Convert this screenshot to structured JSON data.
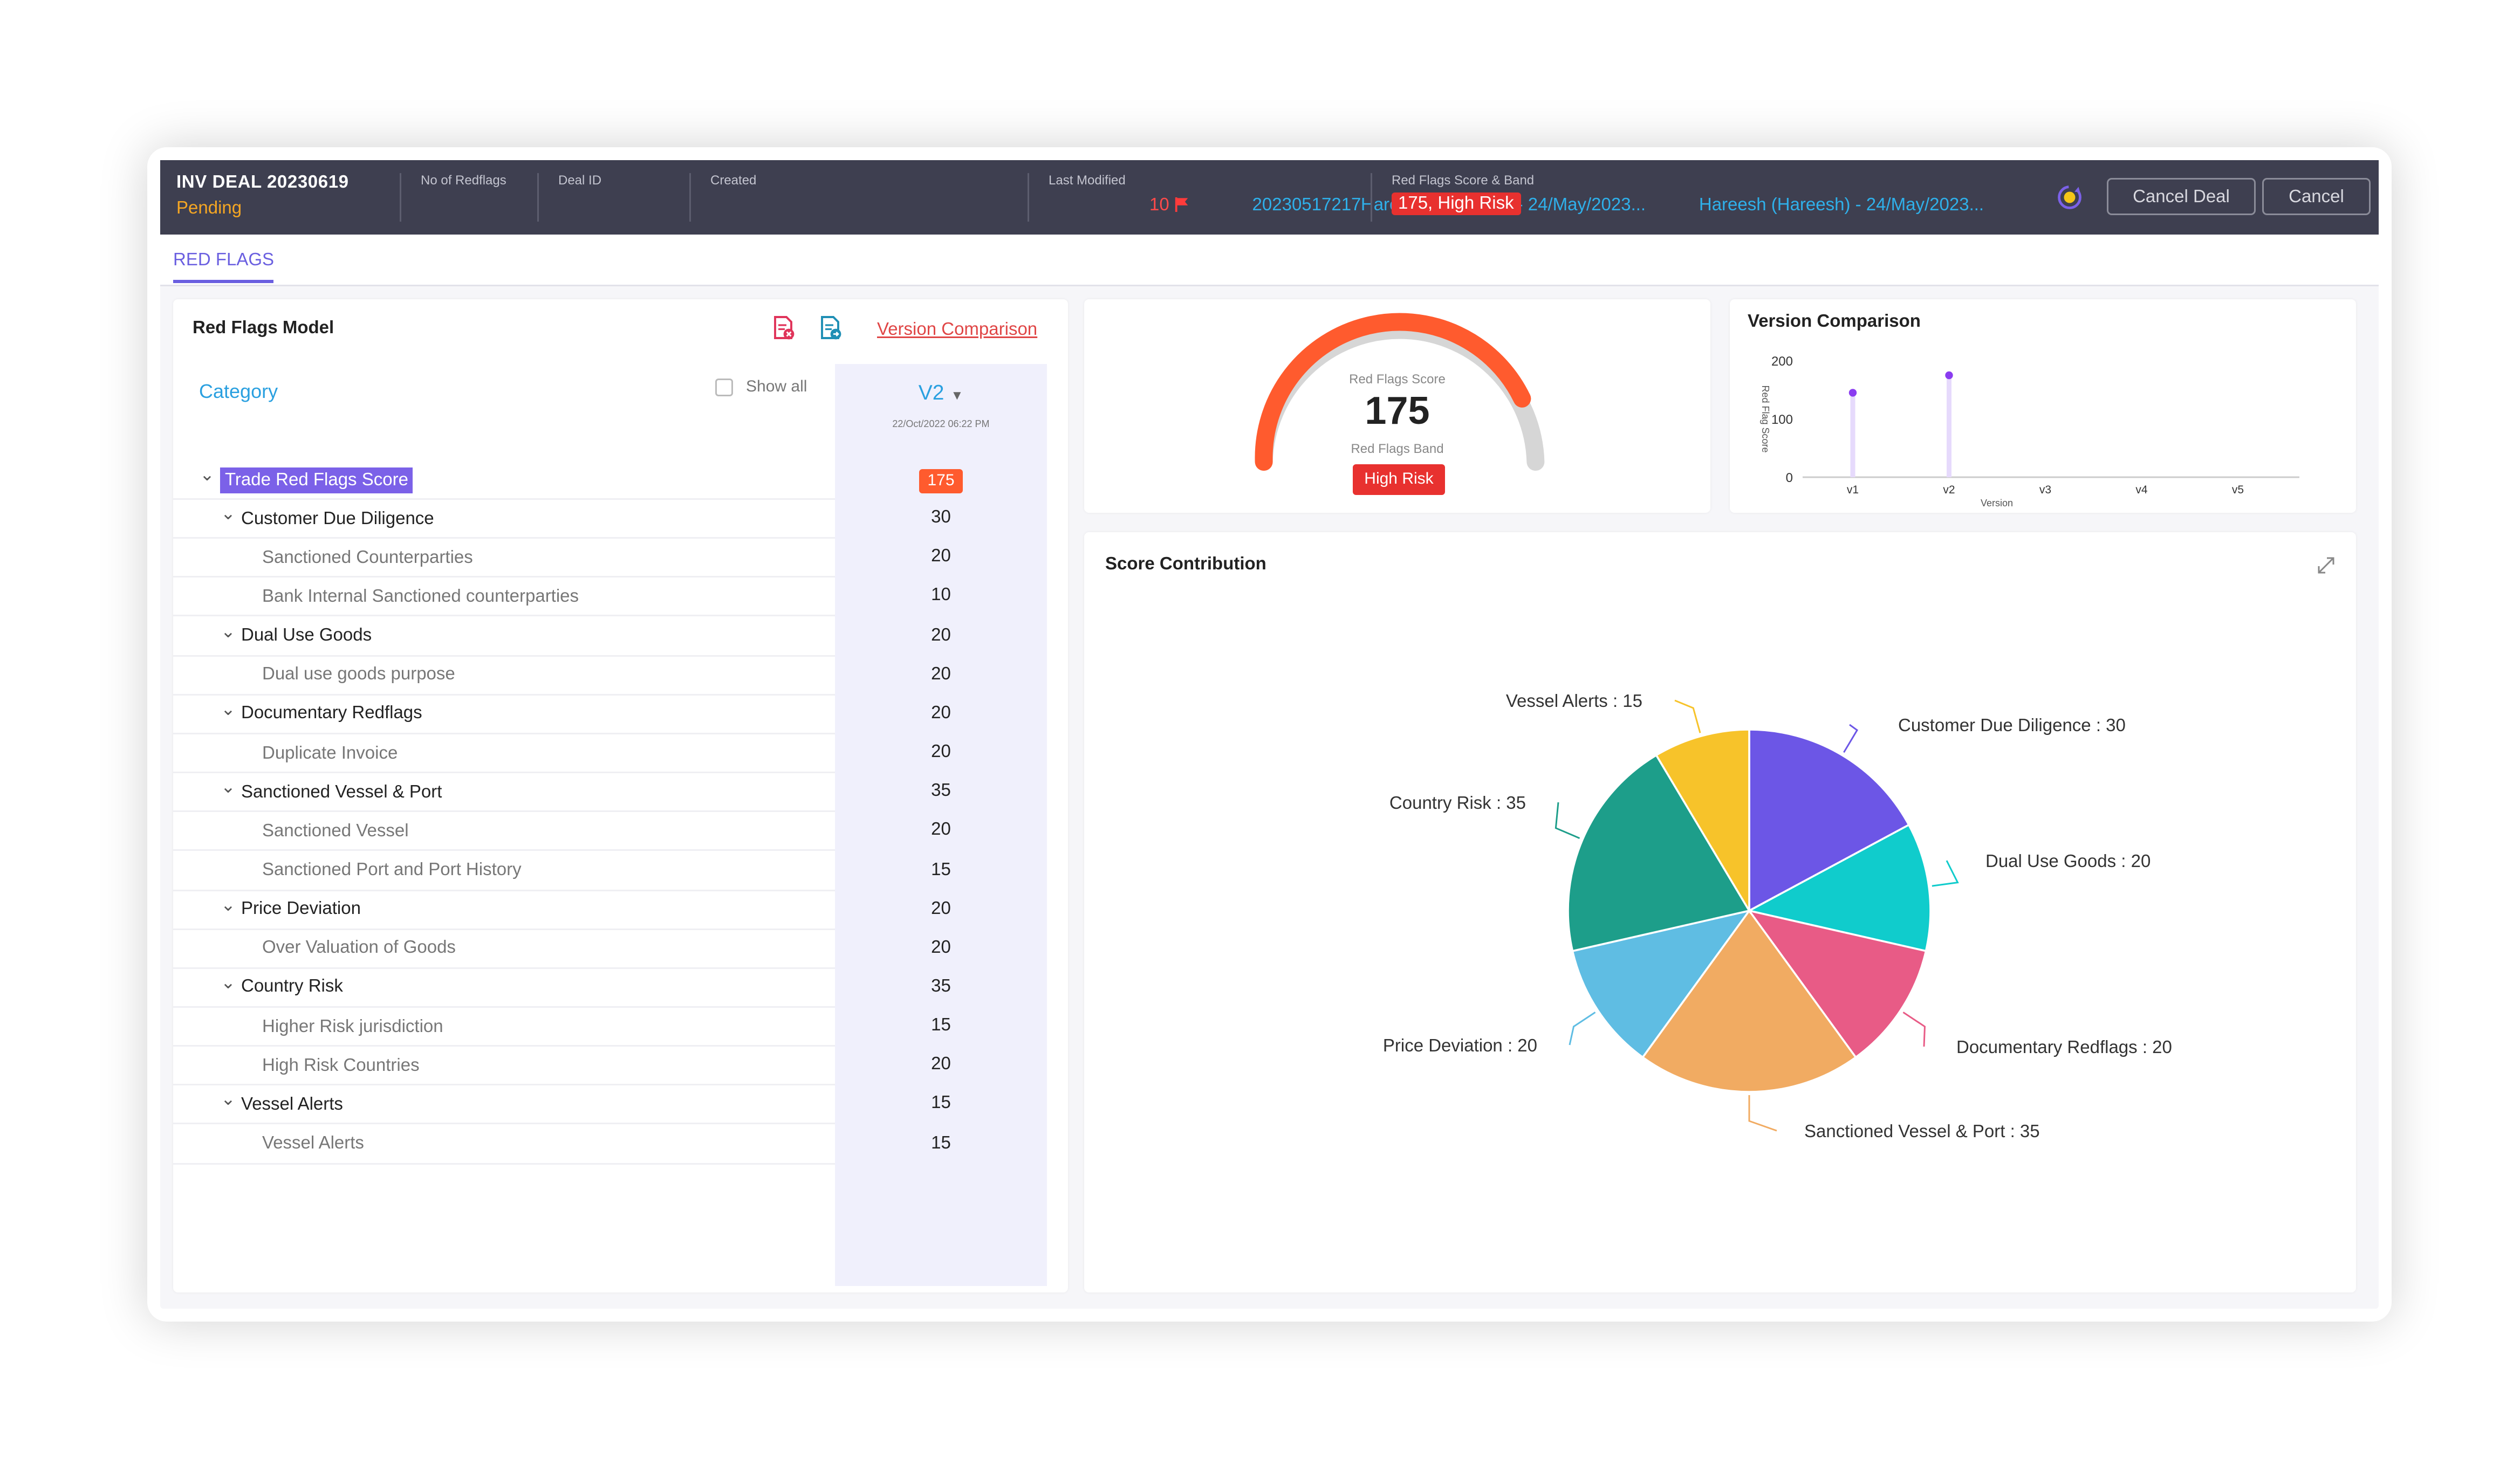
{
  "header": {
    "deal_title": "INV DEAL 20230619",
    "status": "Pending",
    "fields": [
      {
        "label": "No of Redflags",
        "value": "10"
      },
      {
        "label": "Deal ID",
        "value": "20230517217"
      },
      {
        "label": "Created",
        "value": "Hareesh (Hareesh) - 24/May/2023..."
      },
      {
        "label": "Last Modified",
        "value": "Hareesh (Hareesh) - 24/May/2023..."
      },
      {
        "label": "Red Flags Score & Band",
        "value": "175, High Risk"
      }
    ],
    "buttons": {
      "cancel_deal": "Cancel Deal",
      "cancel": "Cancel"
    }
  },
  "tabs": [
    {
      "label": "RED FLAGS",
      "active": true
    }
  ],
  "model": {
    "title": "Red Flags Model",
    "version_comparison_link": "Version Comparison",
    "category_label": "Category",
    "show_all": "Show all",
    "version": {
      "name": "V2",
      "date": "22/Oct/2022 06:22 PM"
    },
    "rows": [
      {
        "level": 0,
        "label": "Trade Red Flags Score",
        "value": "175"
      },
      {
        "level": 1,
        "label": "Customer Due Diligence",
        "value": "30"
      },
      {
        "level": 2,
        "label": "Sanctioned Counterparties",
        "value": "20"
      },
      {
        "level": 2,
        "label": "Bank Internal Sanctioned counterparties",
        "value": "10"
      },
      {
        "level": 1,
        "label": "Dual Use Goods",
        "value": "20"
      },
      {
        "level": 2,
        "label": "Dual use goods purpose",
        "value": "20"
      },
      {
        "level": 1,
        "label": "Documentary Redflags",
        "value": "20"
      },
      {
        "level": 2,
        "label": "Duplicate Invoice",
        "value": "20"
      },
      {
        "level": 1,
        "label": "Sanctioned Vessel & Port",
        "value": "35"
      },
      {
        "level": 2,
        "label": "Sanctioned Vessel",
        "value": "20"
      },
      {
        "level": 2,
        "label": "Sanctioned Port and Port History",
        "value": "15"
      },
      {
        "level": 1,
        "label": "Price Deviation",
        "value": "20"
      },
      {
        "level": 2,
        "label": "Over Valuation of Goods",
        "value": "20"
      },
      {
        "level": 1,
        "label": "Country Risk",
        "value": "35"
      },
      {
        "level": 2,
        "label": "Higher Risk jurisdiction",
        "value": "15"
      },
      {
        "level": 2,
        "label": "High Risk Countries",
        "value": "20"
      },
      {
        "level": 1,
        "label": "Vessel Alerts",
        "value": "15"
      },
      {
        "level": 2,
        "label": "Vessel Alerts",
        "value": "15"
      }
    ]
  },
  "gauge": {
    "score_label": "Red Flags Score",
    "score": "175",
    "score_value": 175,
    "band_label": "Red Flags Band",
    "band": "High Risk",
    "fill_fraction": 0.85,
    "color_fill": "#ff5b2e",
    "color_track": "#d6d6d6"
  },
  "version_chart": {
    "title": "Version Comparison",
    "ylabel": "Red Flag Score",
    "xlabel": "Version",
    "categories": [
      "v1",
      "v2",
      "v3",
      "v4",
      "v5"
    ],
    "values": [
      145,
      175,
      null,
      null,
      null
    ],
    "yticks": [
      "200",
      "100",
      "0"
    ],
    "ylim": [
      0,
      200
    ],
    "color": "#8a3cf0"
  },
  "score_contribution": {
    "title": "Score Contribution",
    "slices": [
      {
        "name": "Customer Due Diligence",
        "label": "Customer Due Diligence : 30",
        "value": 30,
        "color": "#6c56e6"
      },
      {
        "name": "Dual Use Goods",
        "label": "Dual Use Goods : 20",
        "value": 20,
        "color": "#10cccc"
      },
      {
        "name": "Documentary Redflags",
        "label": "Documentary Redflags : 20",
        "value": 20,
        "color": "#e85b86"
      },
      {
        "name": "Sanctioned Vessel & Port",
        "label": "Sanctioned Vessel & Port : 35",
        "value": 35,
        "color": "#f1ab62"
      },
      {
        "name": "Price Deviation",
        "label": "Price Deviation : 20",
        "value": 20,
        "color": "#5fbde3"
      },
      {
        "name": "Country Risk",
        "label": "Country Risk : 35",
        "value": 35,
        "color": "#1d9e8a"
      },
      {
        "name": "Vessel Alerts",
        "label": "Vessel Alerts : 15",
        "value": 15,
        "color": "#f7c32a"
      }
    ]
  },
  "chart_data": [
    {
      "type": "line",
      "title": "Version Comparison",
      "xlabel": "Version",
      "ylabel": "Red Flag Score",
      "categories": [
        "v1",
        "v2",
        "v3",
        "v4",
        "v5"
      ],
      "values": [
        145,
        175,
        null,
        null,
        null
      ],
      "ylim": [
        0,
        200
      ]
    },
    {
      "type": "pie",
      "title": "Score Contribution",
      "categories": [
        "Customer Due Diligence",
        "Dual Use Goods",
        "Documentary Redflags",
        "Sanctioned Vessel & Port",
        "Price Deviation",
        "Country Risk",
        "Vessel Alerts"
      ],
      "values": [
        30,
        20,
        20,
        35,
        20,
        35,
        15
      ]
    }
  ]
}
